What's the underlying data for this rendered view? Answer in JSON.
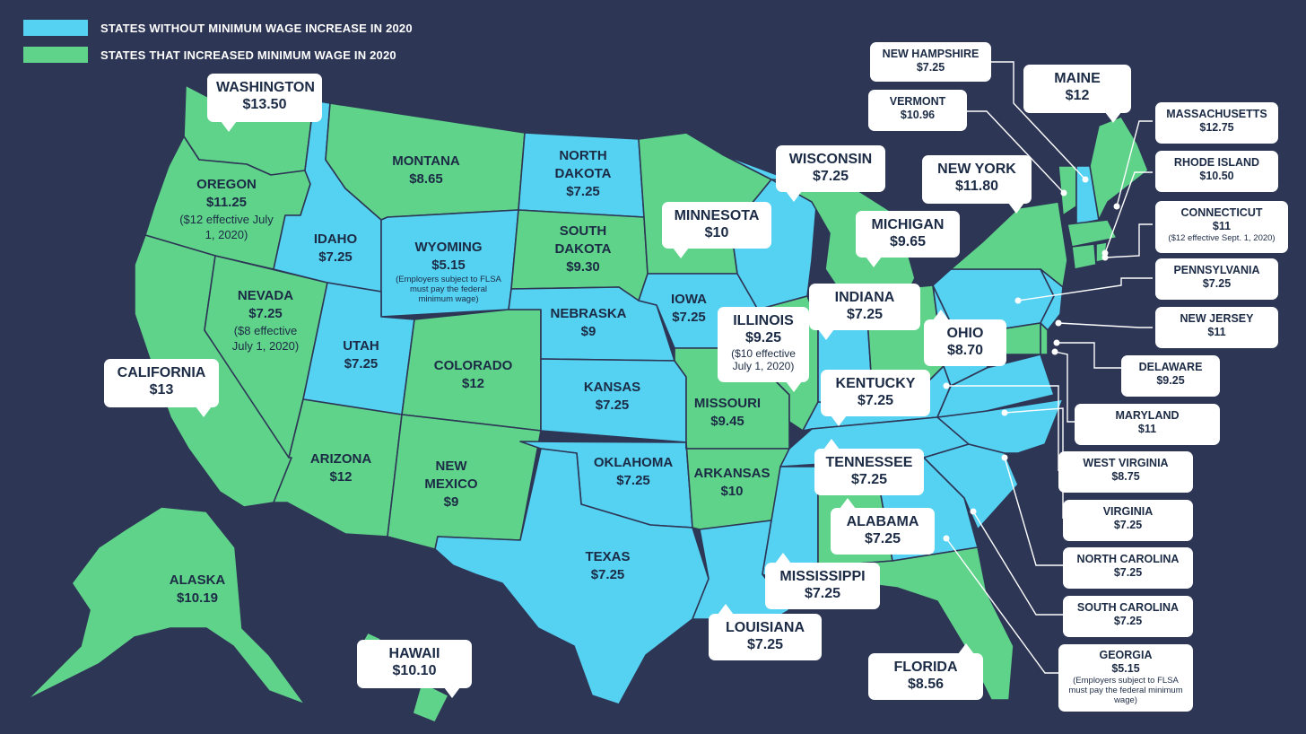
{
  "colors": {
    "background": "#2e3656",
    "no_increase": "#55d1f1",
    "increased": "#5fd38a",
    "border": "#2e3656"
  },
  "legend": [
    {
      "label": "STATES WITHOUT MINIMUM WAGE INCREASE IN 2020",
      "color": "#55d1f1"
    },
    {
      "label": "STATES THAT INCREASED MINIMUM WAGE IN 2020",
      "color": "#5fd38a"
    }
  ],
  "states": {
    "washington": {
      "name": "WASHINGTON",
      "wage": "$13.50"
    },
    "oregon": {
      "name": "OREGON",
      "wage": "$11.25",
      "note": "($12 effective July 1, 2020)"
    },
    "california": {
      "name": "CALIFORNIA",
      "wage": "$13"
    },
    "nevada": {
      "name": "NEVADA",
      "wage": "$7.25",
      "note": "($8 effective July 1, 2020)"
    },
    "idaho": {
      "name": "IDAHO",
      "wage": "$7.25"
    },
    "montana": {
      "name": "MONTANA",
      "wage": "$8.65"
    },
    "wyoming": {
      "name": "WYOMING",
      "wage": "$5.15",
      "note": "(Employers subject to FLSA must pay the federal minimum wage)"
    },
    "utah": {
      "name": "UTAH",
      "wage": "$7.25"
    },
    "arizona": {
      "name": "ARIZONA",
      "wage": "$12"
    },
    "colorado": {
      "name": "COLORADO",
      "wage": "$12"
    },
    "new_mexico": {
      "name": "NEW MEXICO",
      "wage": "$9"
    },
    "north_dakota": {
      "name": "NORTH DAKOTA",
      "wage": "$7.25"
    },
    "south_dakota": {
      "name": "SOUTH DAKOTA",
      "wage": "$9.30"
    },
    "nebraska": {
      "name": "NEBRASKA",
      "wage": "$9"
    },
    "kansas": {
      "name": "KANSAS",
      "wage": "$7.25"
    },
    "oklahoma": {
      "name": "OKLAHOMA",
      "wage": "$7.25"
    },
    "texas": {
      "name": "TEXAS",
      "wage": "$7.25"
    },
    "minnesota": {
      "name": "MINNESOTA",
      "wage": "$10"
    },
    "iowa": {
      "name": "IOWA",
      "wage": "$7.25"
    },
    "missouri": {
      "name": "MISSOURI",
      "wage": "$9.45"
    },
    "arkansas": {
      "name": "ARKANSAS",
      "wage": "$10"
    },
    "louisiana": {
      "name": "LOUISIANA",
      "wage": "$7.25"
    },
    "wisconsin": {
      "name": "WISCONSIN",
      "wage": "$7.25"
    },
    "illinois": {
      "name": "ILLINOIS",
      "wage": "$9.25",
      "note": "($10 effective July 1, 2020)"
    },
    "michigan": {
      "name": "MICHIGAN",
      "wage": "$9.65"
    },
    "indiana": {
      "name": "INDIANA",
      "wage": "$7.25"
    },
    "ohio": {
      "name": "OHIO",
      "wage": "$8.70"
    },
    "kentucky": {
      "name": "KENTUCKY",
      "wage": "$7.25"
    },
    "tennessee": {
      "name": "TENNESSEE",
      "wage": "$7.25"
    },
    "mississippi": {
      "name": "MISSISSIPPI",
      "wage": "$7.25"
    },
    "alabama": {
      "name": "ALABAMA",
      "wage": "$7.25"
    },
    "florida": {
      "name": "FLORIDA",
      "wage": "$8.56"
    },
    "new_york": {
      "name": "NEW YORK",
      "wage": "$11.80"
    },
    "maine": {
      "name": "MAINE",
      "wage": "$12"
    },
    "alaska": {
      "name": "ALASKA",
      "wage": "$10.19"
    },
    "hawaii": {
      "name": "HAWAII",
      "wage": "$10.10"
    },
    "new_hampshire": {
      "name": "NEW HAMPSHIRE",
      "wage": "$7.25"
    },
    "vermont": {
      "name": "VERMONT",
      "wage": "$10.96"
    },
    "massachusetts": {
      "name": "MASSACHUSETTS",
      "wage": "$12.75"
    },
    "rhode_island": {
      "name": "RHODE ISLAND",
      "wage": "$10.50"
    },
    "connecticut": {
      "name": "CONNECTICUT",
      "wage": "$11",
      "note": "($12 effective Sept. 1, 2020)"
    },
    "pennsylvania": {
      "name": "PENNSYLVANIA",
      "wage": "$7.25"
    },
    "new_jersey": {
      "name": "NEW JERSEY",
      "wage": "$11"
    },
    "delaware": {
      "name": "DELAWARE",
      "wage": "$9.25"
    },
    "maryland": {
      "name": "MARYLAND",
      "wage": "$11"
    },
    "west_virginia": {
      "name": "WEST VIRGINIA",
      "wage": "$8.75"
    },
    "virginia": {
      "name": "VIRGINIA",
      "wage": "$7.25"
    },
    "north_carolina": {
      "name": "NORTH CAROLINA",
      "wage": "$7.25"
    },
    "south_carolina": {
      "name": "SOUTH CAROLINA",
      "wage": "$7.25"
    },
    "georgia": {
      "name": "GEORGIA",
      "wage": "$5.15",
      "note": "(Employers subject to FLSA must pay the federal minimum wage)"
    }
  }
}
